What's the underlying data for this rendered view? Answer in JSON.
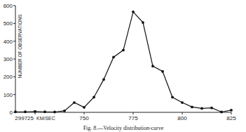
{
  "chart_data": {
    "type": "line",
    "title": "Fig. 8.—Velocity distribution-curve",
    "xlabel": "KM/SEC",
    "ylabel": "NUMBER OF OBSERVATIONS",
    "x": [
      299715,
      299720,
      299725,
      299730,
      299735,
      299740,
      299745,
      299750,
      299755,
      299760,
      299765,
      299770,
      299775,
      299780,
      299785,
      299790,
      299795,
      299800,
      299805,
      299810,
      299815,
      299820,
      299825
    ],
    "values": [
      3,
      3,
      5,
      3,
      2,
      8,
      55,
      28,
      85,
      185,
      310,
      350,
      565,
      505,
      260,
      230,
      85,
      55,
      30,
      22,
      25,
      2,
      12
    ],
    "color": "#111111",
    "marker": "circle",
    "line_style": "solid",
    "xlim": [
      299715,
      299825
    ],
    "xticks": [
      299725,
      {
        "value": 299750,
        "label": "750"
      },
      {
        "value": 299775,
        "label": "775"
      },
      {
        "value": 299800,
        "label": "800"
      },
      {
        "value": 299825,
        "label": "825"
      }
    ],
    "ylim": [
      0,
      600
    ],
    "yticks": [
      0,
      100,
      200,
      300,
      400,
      500,
      600
    ],
    "grid": false
  }
}
